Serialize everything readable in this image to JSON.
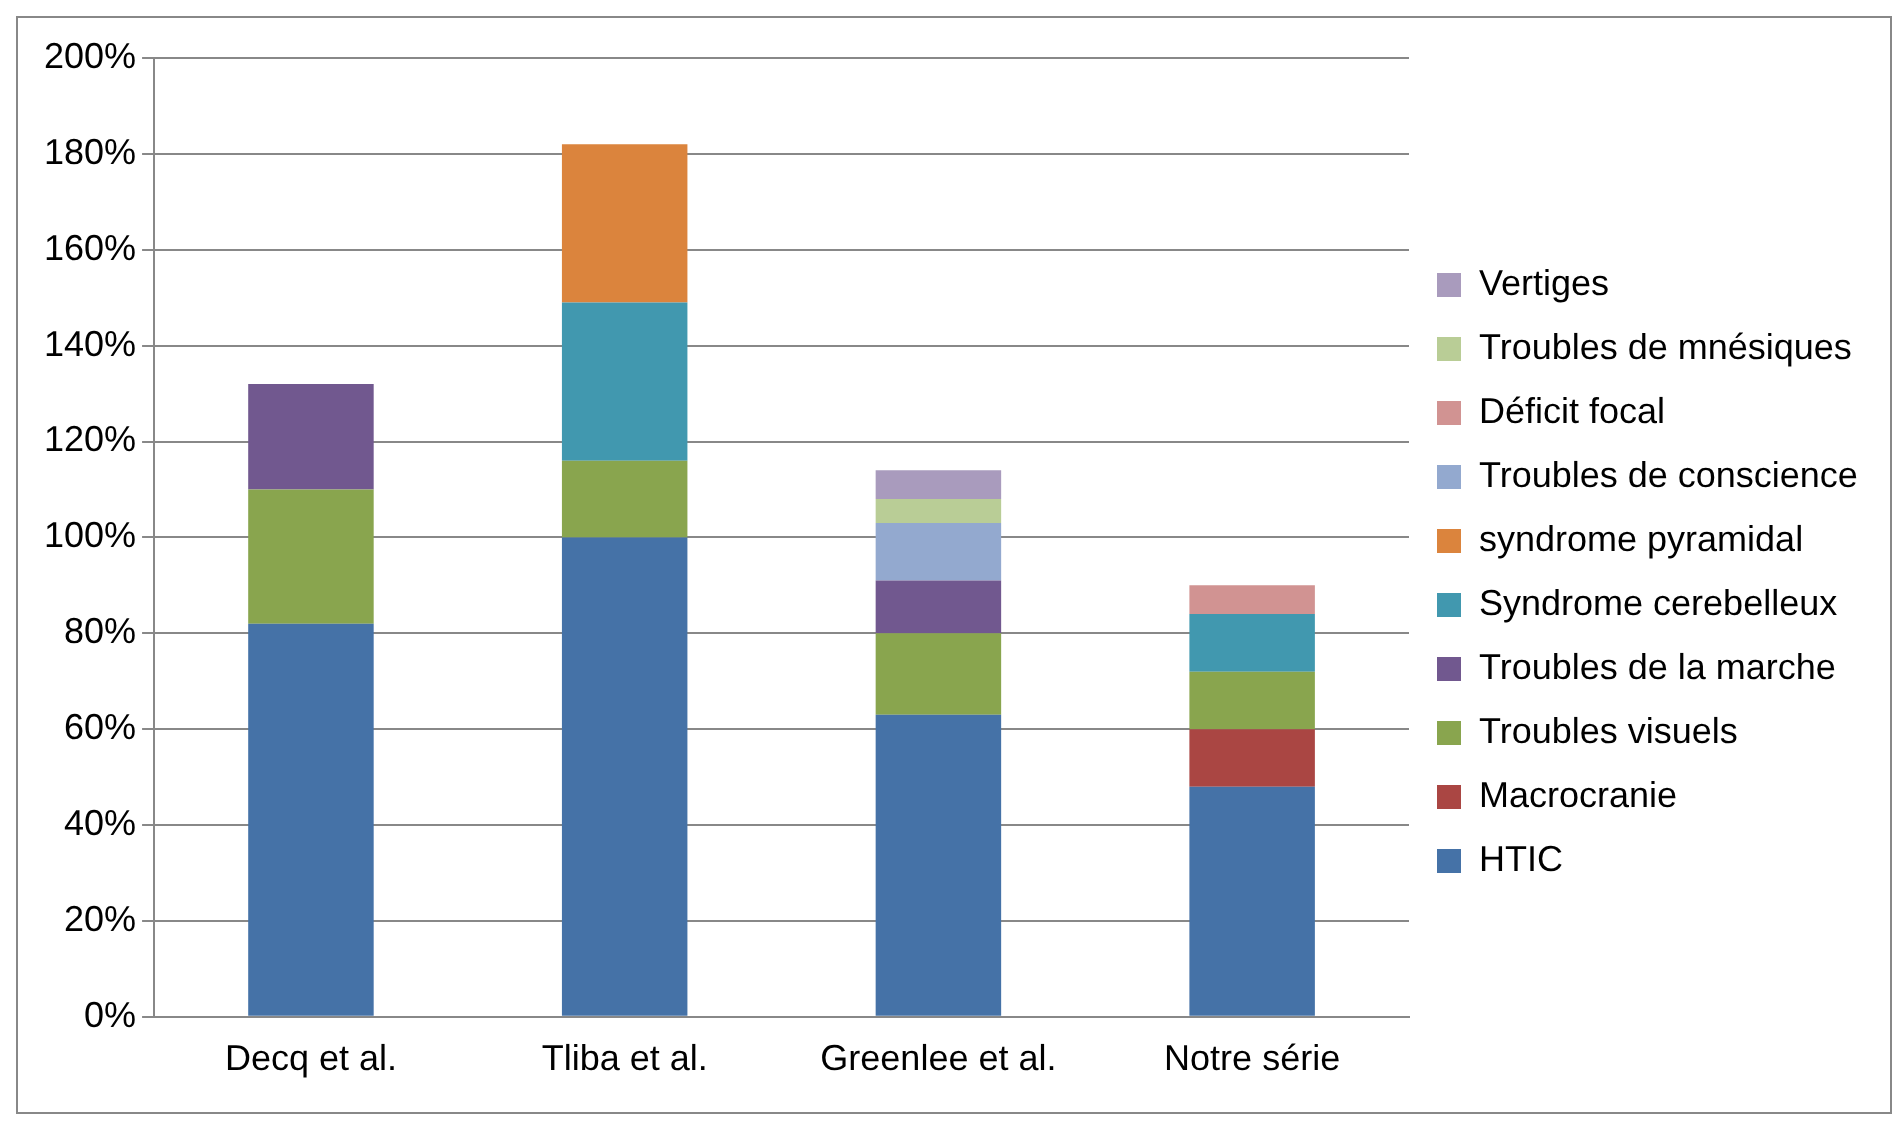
{
  "chart_data": {
    "type": "bar",
    "stacked": true,
    "categories": [
      "Decq et al.",
      "Tliba et al.",
      "Greenlee et al.",
      "Notre série"
    ],
    "series": [
      {
        "name": "HTIC",
        "color": "#4572a7",
        "values": [
          82,
          100,
          63,
          48
        ]
      },
      {
        "name": "Macrocranie",
        "color": "#aa4643",
        "values": [
          null,
          null,
          null,
          12
        ]
      },
      {
        "name": "Troubles visuels",
        "color": "#89a54e",
        "values": [
          28,
          16,
          17,
          12
        ]
      },
      {
        "name": "Troubles de la marche",
        "color": "#71588f",
        "values": [
          22,
          null,
          11,
          null
        ]
      },
      {
        "name": "Syndrome cerebelleux",
        "color": "#4198af",
        "values": [
          null,
          33,
          null,
          12
        ]
      },
      {
        "name": "syndrome pyramidal",
        "color": "#db843d",
        "values": [
          null,
          33,
          null,
          null
        ]
      },
      {
        "name": "Troubles de conscience",
        "color": "#93a9cf",
        "values": [
          null,
          null,
          12,
          null
        ]
      },
      {
        "name": "Déficit focal",
        "color": "#d19392",
        "values": [
          null,
          null,
          null,
          6
        ]
      },
      {
        "name": "Troubles de mnésiques",
        "color": "#b9cd96",
        "values": [
          null,
          null,
          5,
          null
        ]
      },
      {
        "name": "Vertiges",
        "color": "#a99bbd",
        "values": [
          null,
          null,
          6,
          null
        ]
      }
    ],
    "ylim": [
      0,
      200
    ],
    "yticks": [
      {
        "value": 0,
        "label": "0%"
      },
      {
        "value": 20,
        "label": "20%"
      },
      {
        "value": 40,
        "label": "40%"
      },
      {
        "value": 60,
        "label": "60%"
      },
      {
        "value": 80,
        "label": "80%"
      },
      {
        "value": 100,
        "label": "100%"
      },
      {
        "value": 120,
        "label": "120%"
      },
      {
        "value": 140,
        "label": "140%"
      },
      {
        "value": 160,
        "label": "160%"
      },
      {
        "value": 180,
        "label": "180%"
      },
      {
        "value": 200,
        "label": "200%"
      }
    ],
    "grid": "y",
    "legend": "right"
  }
}
